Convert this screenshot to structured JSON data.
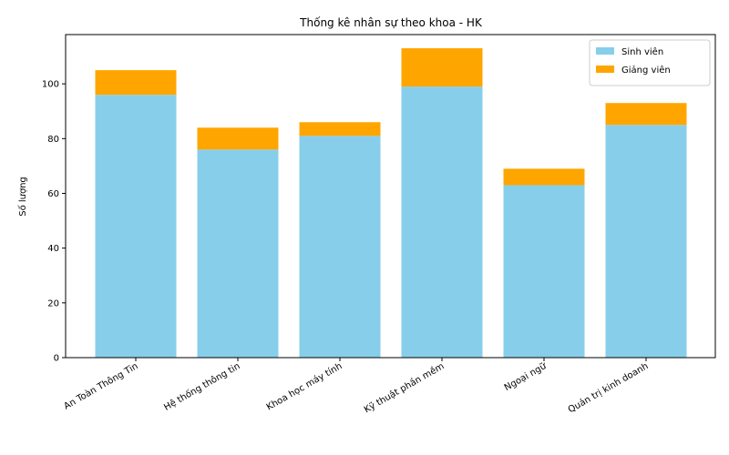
{
  "chart_data": {
    "type": "bar",
    "stacked": true,
    "title": "Thống kê nhân sự theo khoa - HK",
    "xlabel": "",
    "ylabel": "Số lượng",
    "ylim": [
      0,
      118
    ],
    "yticks": [
      0,
      20,
      40,
      60,
      80,
      100
    ],
    "categories": [
      "An Toàn Thông Tin",
      "Hệ thống thông tin",
      "Khoa học máy tính",
      "Kỹ thuật phần mềm",
      "Ngoại ngữ",
      "Quản trị kinh doanh"
    ],
    "series": [
      {
        "name": "Sinh viên",
        "color": "#87ceeb",
        "values": [
          96,
          76,
          81,
          99,
          63,
          85
        ]
      },
      {
        "name": "Giảng viên",
        "color": "#ffa500",
        "values": [
          9,
          8,
          5,
          14,
          6,
          8
        ]
      }
    ],
    "legend_position": "top-right",
    "grid": false
  }
}
